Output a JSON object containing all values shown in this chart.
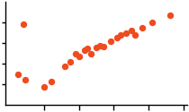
{
  "points": [
    [
      0.05,
      0.3
    ],
    [
      0.09,
      0.25
    ],
    [
      0.2,
      0.18
    ],
    [
      0.24,
      0.23
    ],
    [
      0.32,
      0.38
    ],
    [
      0.35,
      0.42
    ],
    [
      0.38,
      0.5
    ],
    [
      0.4,
      0.47
    ],
    [
      0.43,
      0.53
    ],
    [
      0.45,
      0.55
    ],
    [
      0.47,
      0.5
    ],
    [
      0.5,
      0.56
    ],
    [
      0.52,
      0.58
    ],
    [
      0.54,
      0.57
    ],
    [
      0.58,
      0.62
    ],
    [
      0.62,
      0.65
    ],
    [
      0.64,
      0.68
    ],
    [
      0.67,
      0.7
    ],
    [
      0.7,
      0.72
    ],
    [
      0.72,
      0.68
    ],
    [
      0.76,
      0.75
    ],
    [
      0.82,
      0.8
    ],
    [
      0.92,
      0.87
    ],
    [
      0.08,
      0.78
    ]
  ],
  "dot_color": "#ee4b1e",
  "dot_size": 28,
  "xlim": [
    -0.02,
    1.02
  ],
  "ylim": [
    0.0,
    1.0
  ],
  "bg_color": "#ffffff",
  "xticks": [
    0.2,
    0.4,
    0.6,
    0.8,
    1.0
  ],
  "yticks": [
    0.2,
    0.4,
    0.6,
    0.8
  ]
}
